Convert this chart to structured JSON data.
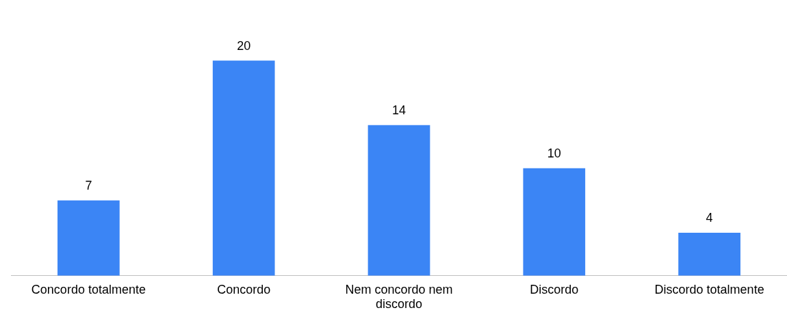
{
  "chart_data": {
    "type": "bar",
    "categories": [
      "Concordo totalmente",
      "Concordo",
      "Nem concordo nem discordo",
      "Discordo",
      "Discordo totalmente"
    ],
    "values": [
      7,
      20,
      14,
      10,
      4
    ],
    "color": "#3b85f5",
    "relative": false,
    "data_labels": true,
    "grid": false,
    "legend": false
  }
}
